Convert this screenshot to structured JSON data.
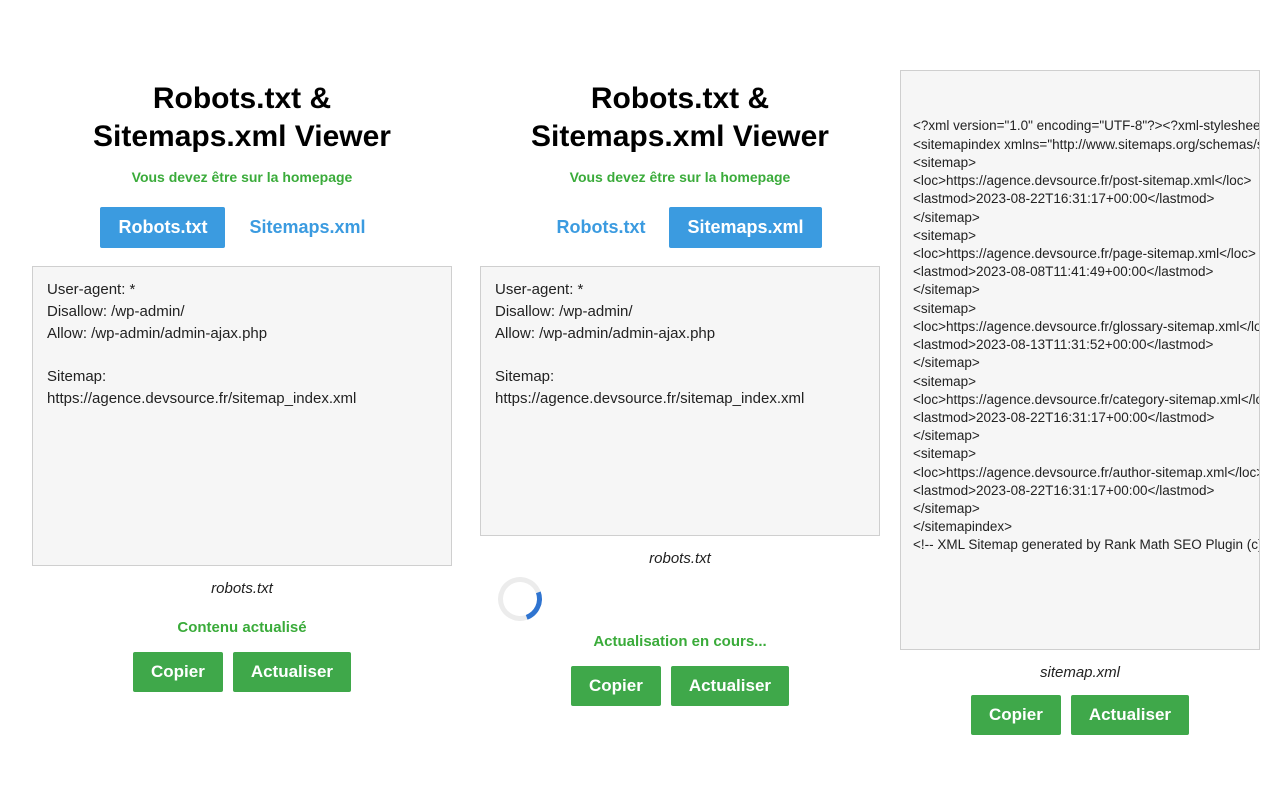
{
  "colors": {
    "tab_active_bg": "#3b9be0",
    "tab_active_fg": "#ffffff",
    "tab_inactive_fg": "#3b9be0",
    "button_bg": "#3fa84a",
    "button_fg": "#ffffff",
    "status_green": "#3aab3a",
    "box_bg": "#f6f6f6",
    "box_border": "#cfcfcf",
    "spinner_track": "#ececec",
    "spinner_accent": "#2f74d0"
  },
  "common": {
    "title_line1": "Robots.txt &",
    "title_line2": "Sitemaps.xml Viewer",
    "subtitle": "Vous devez être sur la homepage",
    "tab_robots": "Robots.txt",
    "tab_sitemaps": "Sitemaps.xml",
    "copy_label": "Copier",
    "refresh_label": "Actualiser"
  },
  "panel1": {
    "active_tab": "robots",
    "content": "User-agent: *\nDisallow: /wp-admin/\nAllow: /wp-admin/admin-ajax.php\n\nSitemap:\nhttps://agence.devsource.fr/sitemap_index.xml",
    "caption": "robots.txt",
    "status": "Contenu actualisé"
  },
  "panel2": {
    "active_tab": "sitemaps",
    "content": "User-agent: *\nDisallow: /wp-admin/\nAllow: /wp-admin/admin-ajax.php\n\nSitemap:\nhttps://agence.devsource.fr/sitemap_index.xml",
    "caption": "robots.txt",
    "status": "Actualisation en cours..."
  },
  "panel3": {
    "content": "<?xml version=\"1.0\" encoding=\"UTF-8\"?><?xml-stylesheet type=\"text/xsl\" href=\"//agence.devsource.fr/main-sitemap.xsl\"?>\n<sitemapindex xmlns=\"http://www.sitemaps.org/schemas/sitemap/0.9\">\n<sitemap>\n<loc>https://agence.devsource.fr/post-sitemap.xml</loc>\n<lastmod>2023-08-22T16:31:17+00:00</lastmod>\n</sitemap>\n<sitemap>\n<loc>https://agence.devsource.fr/page-sitemap.xml</loc>\n<lastmod>2023-08-08T11:41:49+00:00</lastmod>\n</sitemap>\n<sitemap>\n<loc>https://agence.devsource.fr/glossary-sitemap.xml</loc>\n<lastmod>2023-08-13T11:31:52+00:00</lastmod>\n</sitemap>\n<sitemap>\n<loc>https://agence.devsource.fr/category-sitemap.xml</loc>\n<lastmod>2023-08-22T16:31:17+00:00</lastmod>\n</sitemap>\n<sitemap>\n<loc>https://agence.devsource.fr/author-sitemap.xml</loc>\n<lastmod>2023-08-22T16:31:17+00:00</lastmod>\n</sitemap>\n</sitemapindex>\n<!-- XML Sitemap generated by Rank Math SEO Plugin (c) Rank Math - rankmath.com -->",
    "caption": "sitemap.xml"
  }
}
